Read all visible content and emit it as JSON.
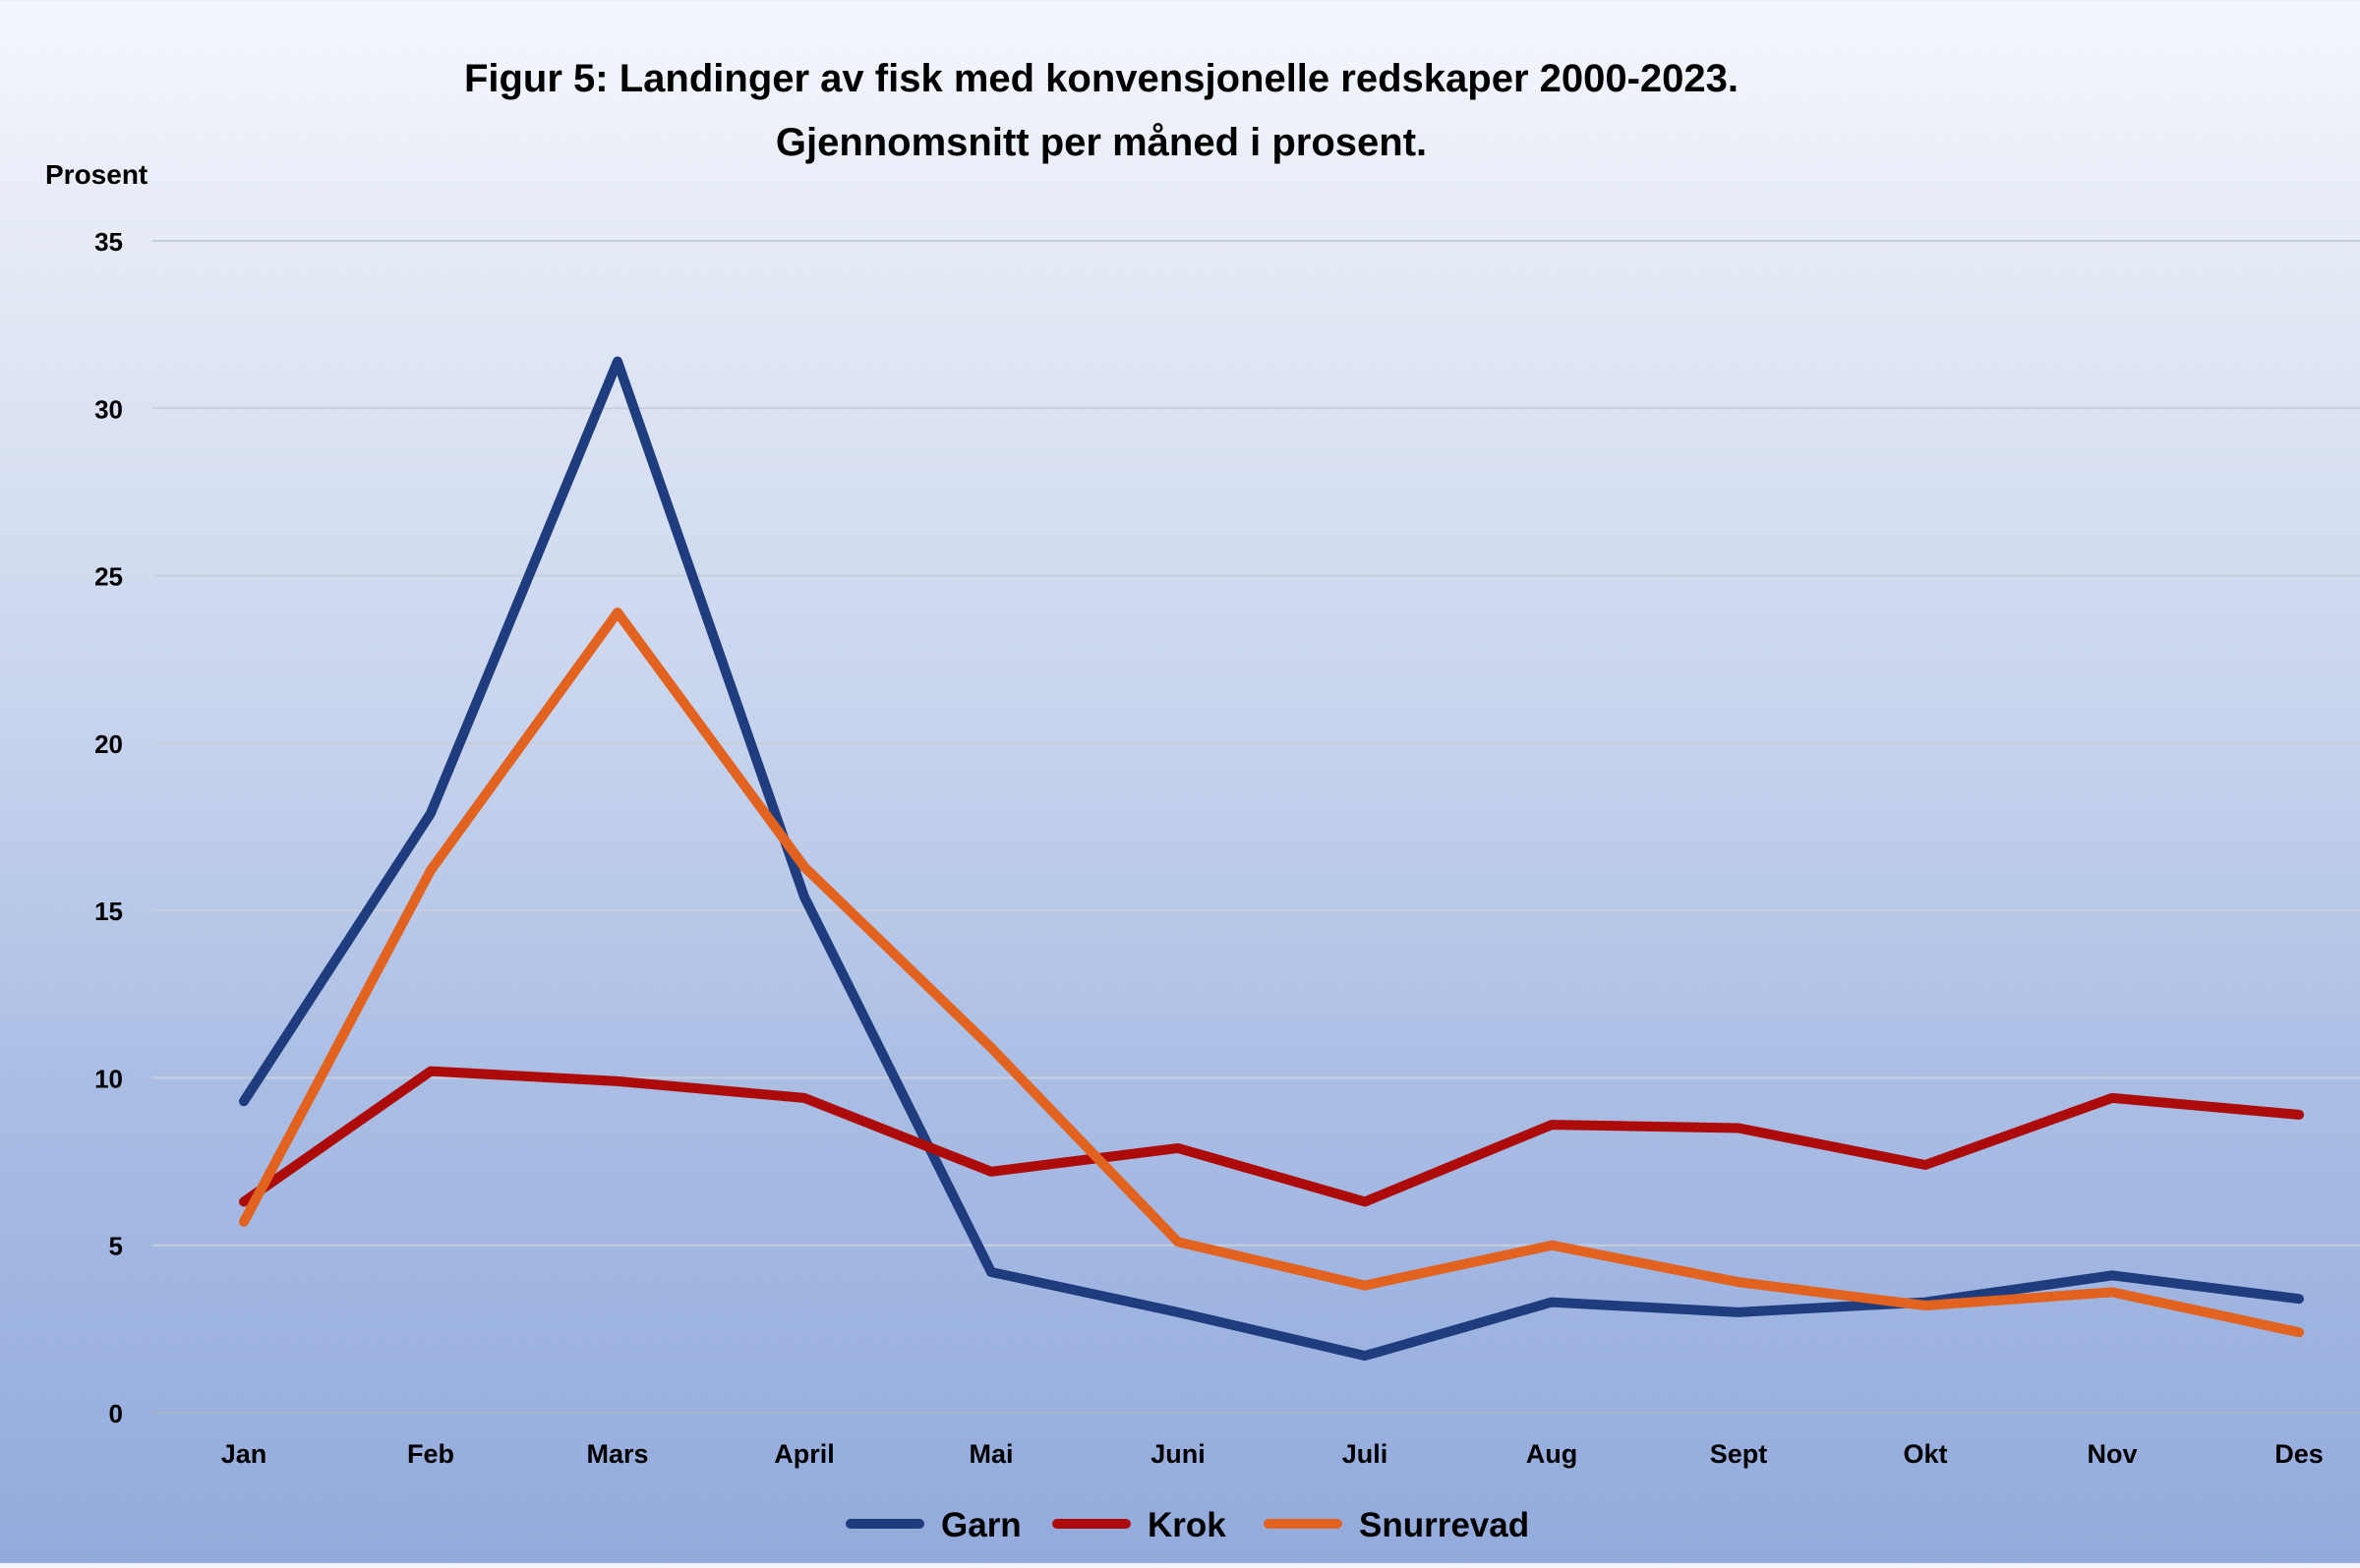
{
  "chart_data": {
    "type": "line",
    "title": "Figur 5: Landinger av fisk med konvensjonelle redskaper 2000-2023.",
    "subtitle": "Gjennomsnitt per måned i prosent.",
    "ylabel": "Prosent",
    "xlabel": "",
    "ylim": [
      0,
      35
    ],
    "yticks": [
      "0",
      "5",
      "10",
      "15",
      "20",
      "25",
      "30",
      "35"
    ],
    "ytick_values": [
      0,
      5,
      10,
      15,
      20,
      25,
      30,
      35
    ],
    "categories": [
      "Jan",
      "Feb",
      "Mars",
      "April",
      "Mai",
      "Juni",
      "Juli",
      "Aug",
      "Sept",
      "Okt",
      "Nov",
      "Des"
    ],
    "grid": true,
    "legend_position": "bottom-center",
    "series": [
      {
        "name": "Garn",
        "color": "#1f3c7e",
        "values": [
          9.3,
          17.9,
          31.4,
          15.4,
          4.2,
          3.0,
          1.7,
          3.3,
          3.0,
          3.3,
          4.1,
          3.4
        ]
      },
      {
        "name": "Krok",
        "color": "#ad0a0a",
        "values": [
          6.3,
          10.2,
          9.9,
          9.4,
          7.2,
          7.9,
          6.3,
          8.6,
          8.5,
          7.4,
          9.4,
          8.9
        ]
      },
      {
        "name": "Snurrevad",
        "color": "#e2621f",
        "values": [
          5.7,
          16.2,
          23.9,
          16.3,
          10.9,
          5.1,
          3.8,
          5.0,
          3.9,
          3.2,
          3.6,
          2.4
        ]
      }
    ]
  }
}
